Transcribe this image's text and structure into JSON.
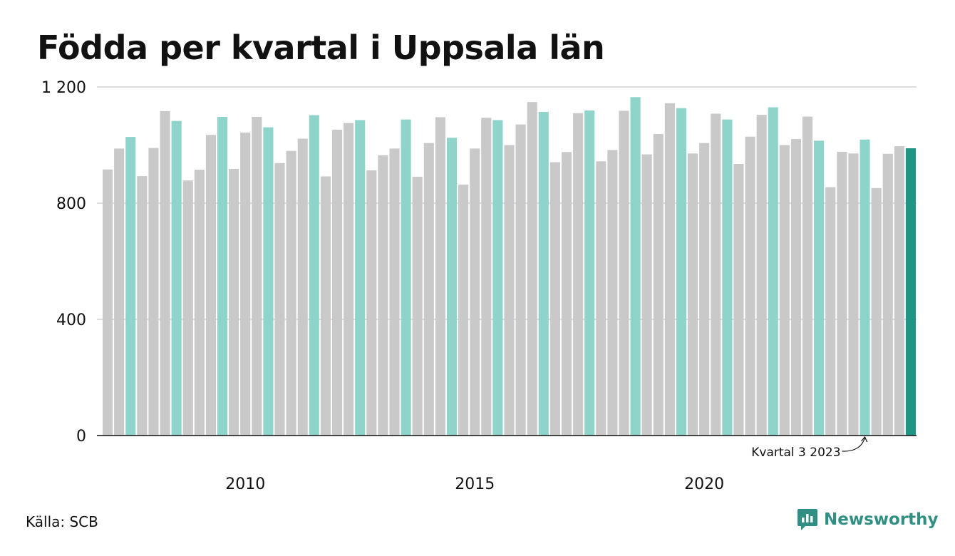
{
  "title": "Födda per kvartal i Uppsala län",
  "source": "Källa: SCB",
  "brand": "Newsworthy",
  "colors": {
    "bar_default": "#c9c9c9",
    "bar_q3": "#8fd4cb",
    "bar_latest": "#1e9585",
    "grid": "#dddddd",
    "axis": "#111111",
    "brand": "#2f8f82"
  },
  "chart_data": {
    "type": "bar",
    "title": "Födda per kvartal i Uppsala län",
    "xlabel": "",
    "ylabel": "",
    "ylim": [
      0,
      1200
    ],
    "yticks": [
      0,
      400,
      800,
      1200
    ],
    "ytick_labels": [
      "0",
      "400",
      "800",
      "1 200"
    ],
    "xtick_labels": [
      {
        "label": "2010",
        "category": "2010 Q1"
      },
      {
        "label": "2015",
        "category": "2015 Q1"
      },
      {
        "label": "2020",
        "category": "2020 Q1"
      }
    ],
    "grid": true,
    "highlight": "Q3 bars teal, latest bar dark teal",
    "annotation": {
      "text": "Kvartal 3 2023",
      "category": "2023 Q3"
    },
    "categories": [
      "2007 Q1",
      "2007 Q2",
      "2007 Q3",
      "2007 Q4",
      "2008 Q1",
      "2008 Q2",
      "2008 Q3",
      "2008 Q4",
      "2009 Q1",
      "2009 Q2",
      "2009 Q3",
      "2009 Q4",
      "2010 Q1",
      "2010 Q2",
      "2010 Q3",
      "2010 Q4",
      "2011 Q1",
      "2011 Q2",
      "2011 Q3",
      "2011 Q4",
      "2012 Q1",
      "2012 Q2",
      "2012 Q3",
      "2012 Q4",
      "2013 Q1",
      "2013 Q2",
      "2013 Q3",
      "2013 Q4",
      "2014 Q1",
      "2014 Q2",
      "2014 Q3",
      "2014 Q4",
      "2015 Q1",
      "2015 Q2",
      "2015 Q3",
      "2015 Q4",
      "2016 Q1",
      "2016 Q2",
      "2016 Q3",
      "2016 Q4",
      "2017 Q1",
      "2017 Q2",
      "2017 Q3",
      "2017 Q4",
      "2018 Q1",
      "2018 Q2",
      "2018 Q3",
      "2018 Q4",
      "2019 Q1",
      "2019 Q2",
      "2019 Q3",
      "2019 Q4",
      "2020 Q1",
      "2020 Q2",
      "2020 Q3",
      "2020 Q4",
      "2021 Q1",
      "2021 Q2",
      "2021 Q3",
      "2021 Q4",
      "2022 Q1",
      "2022 Q2",
      "2022 Q3",
      "2022 Q4",
      "2023 Q1",
      "2023 Q2",
      "2023 Q3",
      "2023 Q4",
      "2024 Q1",
      "2024 Q2",
      "2024 Q3"
    ],
    "values": [
      916,
      988,
      1028,
      893,
      990,
      1117,
      1083,
      878,
      915,
      1035,
      1097,
      918,
      1043,
      1097,
      1061,
      938,
      980,
      1022,
      1103,
      892,
      1053,
      1076,
      1086,
      913,
      965,
      988,
      1088,
      891,
      1007,
      1096,
      1025,
      864,
      988,
      1094,
      1086,
      1000,
      1071,
      1148,
      1114,
      941,
      976,
      1110,
      1119,
      944,
      983,
      1118,
      1165,
      968,
      1038,
      1144,
      1127,
      971,
      1007,
      1108,
      1088,
      935,
      1029,
      1104,
      1130,
      1000,
      1021,
      1098,
      1015,
      855,
      977,
      971,
      1019,
      852,
      970,
      996,
      989
    ]
  }
}
